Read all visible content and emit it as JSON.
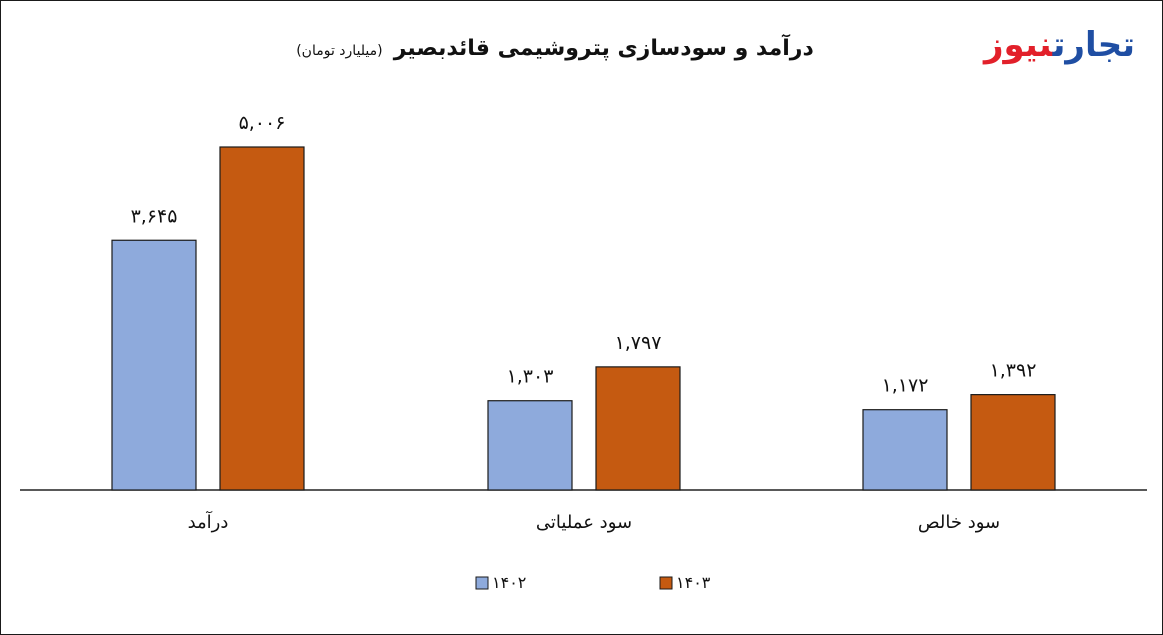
{
  "header": {
    "title": "درآمد و سودسازی پتروشیمی قائدبصیر",
    "unit": "(میلیارد تومان)",
    "logo_part1": "تجارت",
    "logo_part2": "نیوز"
  },
  "chart_data": {
    "type": "bar",
    "title": "درآمد و سودسازی پتروشیمی قائدبصیر",
    "subtitle": "(میلیارد تومان)",
    "categories": [
      "درآمد",
      "سود عملیاتی",
      "سود خالص"
    ],
    "series": [
      {
        "name": "۱۴۰۲",
        "color": "#8eaadc",
        "values": [
          3645,
          1303,
          1172
        ],
        "labels": [
          "۳,۶۴۵",
          "۱,۳۰۳",
          "۱,۱۷۲"
        ]
      },
      {
        "name": "۱۴۰۳",
        "color": "#c55a11",
        "values": [
          5006,
          1797,
          1392
        ],
        "labels": [
          "۵,۰۰۶",
          "۱,۷۹۷",
          "۱,۳۹۲"
        ]
      }
    ],
    "ylim": [
      0,
      5006
    ],
    "grid": false,
    "legend_position": "bottom-center"
  }
}
